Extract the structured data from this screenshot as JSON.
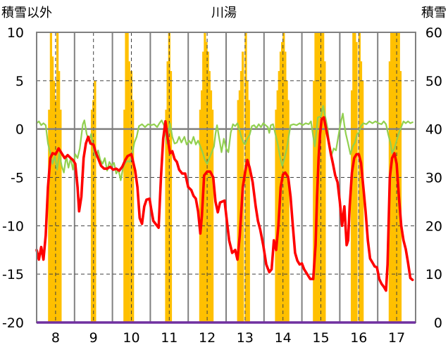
{
  "chart_data": {
    "type": "bar+line",
    "title": "川湯",
    "left_axis_label": "積雪以外",
    "right_axis_label": "積雪",
    "x_ticks": [
      "8",
      "9",
      "10",
      "11",
      "12",
      "13",
      "14",
      "15",
      "16",
      "17"
    ],
    "x_range": [
      7.5,
      17.5
    ],
    "y_left": {
      "min": -20,
      "max": 10,
      "ticks": [
        "10",
        "5",
        "0",
        "-5",
        "-10",
        "-15",
        "-20"
      ]
    },
    "y_right": {
      "min": 0,
      "max": 60,
      "ticks": [
        "60",
        "50",
        "40",
        "30",
        "20",
        "10",
        "0"
      ]
    },
    "colors": {
      "bars": "#FFC000",
      "red_line": "#FF0000",
      "green_line": "#92D050",
      "baseline": "#7030A0",
      "frame": "#808080"
    },
    "bars": [
      [
        7.83,
        44
      ],
      [
        7.88,
        60
      ],
      [
        7.92,
        55
      ],
      [
        7.96,
        50
      ],
      [
        8.0,
        46
      ],
      [
        8.05,
        60
      ],
      [
        8.09,
        52
      ],
      [
        8.13,
        44
      ],
      [
        8.96,
        44
      ],
      [
        9.0,
        46
      ],
      [
        9.04,
        50
      ],
      [
        9.82,
        44
      ],
      [
        9.86,
        60
      ],
      [
        9.9,
        60
      ],
      [
        9.94,
        54
      ],
      [
        10.0,
        52
      ],
      [
        10.04,
        46
      ],
      [
        10.92,
        44
      ],
      [
        10.96,
        54
      ],
      [
        11.0,
        60
      ],
      [
        11.04,
        52
      ],
      [
        11.82,
        44
      ],
      [
        11.86,
        48
      ],
      [
        11.9,
        56
      ],
      [
        11.94,
        60
      ],
      [
        11.98,
        58
      ],
      [
        12.02,
        56
      ],
      [
        12.06,
        52
      ],
      [
        12.1,
        48
      ],
      [
        12.14,
        44
      ],
      [
        12.82,
        46
      ],
      [
        12.86,
        48
      ],
      [
        12.9,
        52
      ],
      [
        12.94,
        56
      ],
      [
        13.02,
        60
      ],
      [
        13.06,
        50
      ],
      [
        13.1,
        46
      ],
      [
        13.82,
        44
      ],
      [
        13.86,
        48
      ],
      [
        13.9,
        52
      ],
      [
        13.94,
        56
      ],
      [
        13.98,
        58
      ],
      [
        14.02,
        60
      ],
      [
        14.06,
        56
      ],
      [
        14.1,
        50
      ],
      [
        14.14,
        46
      ],
      [
        14.82,
        50
      ],
      [
        14.86,
        60
      ],
      [
        14.9,
        60
      ],
      [
        14.94,
        60
      ],
      [
        14.98,
        60
      ],
      [
        15.02,
        60
      ],
      [
        15.06,
        60
      ],
      [
        15.1,
        54
      ],
      [
        15.82,
        48
      ],
      [
        15.86,
        60
      ],
      [
        15.9,
        60
      ],
      [
        15.94,
        58
      ],
      [
        16.02,
        60
      ],
      [
        16.06,
        54
      ],
      [
        16.1,
        50
      ],
      [
        16.82,
        54
      ],
      [
        16.86,
        60
      ],
      [
        16.9,
        60
      ],
      [
        16.94,
        60
      ],
      [
        16.98,
        60
      ],
      [
        17.02,
        60
      ],
      [
        17.06,
        60
      ],
      [
        17.1,
        52
      ]
    ],
    "red_series": [
      [
        7.5,
        -12.5
      ],
      [
        7.56,
        -13.5
      ],
      [
        7.62,
        -12.2
      ],
      [
        7.68,
        -13.5
      ],
      [
        7.74,
        -11
      ],
      [
        7.8,
        -6
      ],
      [
        7.86,
        -3
      ],
      [
        7.92,
        -2.5
      ],
      [
        8.0,
        -2.6
      ],
      [
        8.08,
        -2.0
      ],
      [
        8.16,
        -2.5
      ],
      [
        8.24,
        -3
      ],
      [
        8.32,
        -2.7
      ],
      [
        8.4,
        -3
      ],
      [
        8.46,
        -3.2
      ],
      [
        8.52,
        -3.6
      ],
      [
        8.58,
        -6
      ],
      [
        8.62,
        -8.5
      ],
      [
        8.68,
        -7
      ],
      [
        8.74,
        -3
      ],
      [
        8.8,
        -1.5
      ],
      [
        8.86,
        -0.8
      ],
      [
        8.92,
        -1.5
      ],
      [
        9.0,
        -1.6
      ],
      [
        9.06,
        -2.4
      ],
      [
        9.14,
        -3.2
      ],
      [
        9.2,
        -3.8
      ],
      [
        9.28,
        -4.1
      ],
      [
        9.36,
        -4.1
      ],
      [
        9.44,
        -3.9
      ],
      [
        9.52,
        -4.2
      ],
      [
        9.6,
        -4.1
      ],
      [
        9.68,
        -4.3
      ],
      [
        9.76,
        -3.9
      ],
      [
        9.84,
        -3.2
      ],
      [
        9.9,
        -2.8
      ],
      [
        10.0,
        -2.6
      ],
      [
        10.1,
        -4.3
      ],
      [
        10.16,
        -6
      ],
      [
        10.22,
        -9.2
      ],
      [
        10.28,
        -9.8
      ],
      [
        10.34,
        -8
      ],
      [
        10.4,
        -7.3
      ],
      [
        10.48,
        -7.2
      ],
      [
        10.52,
        -8.2
      ],
      [
        10.58,
        -9.5
      ],
      [
        10.64,
        -9.8
      ],
      [
        10.72,
        -10.2
      ],
      [
        10.78,
        -5
      ],
      [
        10.84,
        -1
      ],
      [
        10.9,
        0.8
      ],
      [
        10.96,
        -1
      ],
      [
        11.02,
        -2.5
      ],
      [
        11.08,
        -2.3
      ],
      [
        11.14,
        -3.1
      ],
      [
        11.2,
        -3.4
      ],
      [
        11.26,
        -4.2
      ],
      [
        11.34,
        -4.6
      ],
      [
        11.42,
        -4.6
      ],
      [
        11.5,
        -6
      ],
      [
        11.58,
        -6.3
      ],
      [
        11.64,
        -6.9
      ],
      [
        11.7,
        -7.2
      ],
      [
        11.76,
        -8.5
      ],
      [
        11.82,
        -10.8
      ],
      [
        11.86,
        -9
      ],
      [
        11.92,
        -4.8
      ],
      [
        12.0,
        -4.4
      ],
      [
        12.08,
        -4.4
      ],
      [
        12.16,
        -5
      ],
      [
        12.22,
        -7.5
      ],
      [
        12.28,
        -8.6
      ],
      [
        12.34,
        -7.6
      ],
      [
        12.4,
        -7.5
      ],
      [
        12.46,
        -7.4
      ],
      [
        12.52,
        -9.5
      ],
      [
        12.58,
        -11.5
      ],
      [
        12.66,
        -12.8
      ],
      [
        12.74,
        -12.5
      ],
      [
        12.8,
        -13.5
      ],
      [
        12.86,
        -11
      ],
      [
        12.94,
        -6
      ],
      [
        13.0,
        -4.5
      ],
      [
        13.06,
        -3.2
      ],
      [
        13.12,
        -4
      ],
      [
        13.2,
        -5.5
      ],
      [
        13.28,
        -8
      ],
      [
        13.34,
        -9.5
      ],
      [
        13.4,
        -10.4
      ],
      [
        13.48,
        -12
      ],
      [
        13.56,
        -14
      ],
      [
        13.64,
        -14.8
      ],
      [
        13.7,
        -14.5
      ],
      [
        13.76,
        -11.5
      ],
      [
        13.82,
        -12.5
      ],
      [
        13.88,
        -10
      ],
      [
        13.94,
        -6
      ],
      [
        14.0,
        -4.7
      ],
      [
        14.06,
        -4.5
      ],
      [
        14.14,
        -5
      ],
      [
        14.2,
        -7
      ],
      [
        14.26,
        -10
      ],
      [
        14.32,
        -12.8
      ],
      [
        14.38,
        -13.6
      ],
      [
        14.44,
        -14
      ],
      [
        14.5,
        -13.9
      ],
      [
        14.56,
        -14.5
      ],
      [
        14.64,
        -15
      ],
      [
        14.72,
        -15.5
      ],
      [
        14.8,
        -15.5
      ],
      [
        14.86,
        -12
      ],
      [
        14.9,
        -7
      ],
      [
        14.94,
        -3
      ],
      [
        14.98,
        -0.5
      ],
      [
        15.02,
        1
      ],
      [
        15.08,
        1.2
      ],
      [
        15.14,
        0
      ],
      [
        15.2,
        -1.2
      ],
      [
        15.26,
        -2.5
      ],
      [
        15.32,
        -3.6
      ],
      [
        15.38,
        -4.8
      ],
      [
        15.44,
        -5.5
      ],
      [
        15.5,
        -7.5
      ],
      [
        15.56,
        -10
      ],
      [
        15.62,
        -8
      ],
      [
        15.68,
        -12
      ],
      [
        15.72,
        -11.5
      ],
      [
        15.76,
        -8
      ],
      [
        15.82,
        -4.5
      ],
      [
        15.88,
        -3
      ],
      [
        15.94,
        -2.6
      ],
      [
        16.0,
        -2.6
      ],
      [
        16.06,
        -3.5
      ],
      [
        16.12,
        -6
      ],
      [
        16.18,
        -8.5
      ],
      [
        16.24,
        -11.5
      ],
      [
        16.3,
        -13.4
      ],
      [
        16.36,
        -13.8
      ],
      [
        16.42,
        -14.2
      ],
      [
        16.48,
        -14.3
      ],
      [
        16.54,
        -15.5
      ],
      [
        16.6,
        -16
      ],
      [
        16.66,
        -16.3
      ],
      [
        16.72,
        -16.7
      ],
      [
        16.76,
        -14
      ],
      [
        16.82,
        -5
      ],
      [
        16.88,
        -3
      ],
      [
        16.94,
        -2.5
      ],
      [
        17.0,
        -3.6
      ],
      [
        17.06,
        -7
      ],
      [
        17.12,
        -10
      ],
      [
        17.18,
        -11.5
      ],
      [
        17.24,
        -12.4
      ],
      [
        17.3,
        -13.8
      ],
      [
        17.36,
        -15.4
      ],
      [
        17.42,
        -15.6
      ]
    ],
    "green_series": [
      [
        7.5,
        0.6
      ],
      [
        7.56,
        0.8
      ],
      [
        7.62,
        0.4
      ],
      [
        7.68,
        0.6
      ],
      [
        7.74,
        0.4
      ],
      [
        7.8,
        -1.5
      ],
      [
        7.86,
        -2.5
      ],
      [
        7.92,
        -3.6
      ],
      [
        7.98,
        -2.8
      ],
      [
        8.04,
        -4.2
      ],
      [
        8.1,
        -2.5
      ],
      [
        8.16,
        -3.8
      ],
      [
        8.22,
        -4.5
      ],
      [
        8.28,
        -2.8
      ],
      [
        8.34,
        -4
      ],
      [
        8.4,
        -3
      ],
      [
        8.46,
        -4.2
      ],
      [
        8.52,
        -2.6
      ],
      [
        8.58,
        -3
      ],
      [
        8.64,
        -2
      ],
      [
        8.72,
        0.5
      ],
      [
        8.76,
        0.9
      ],
      [
        8.82,
        -0.5
      ],
      [
        8.88,
        -1.2
      ],
      [
        8.94,
        -0.5
      ],
      [
        9.0,
        -2.1
      ],
      [
        9.06,
        -2.9
      ],
      [
        9.12,
        -2.2
      ],
      [
        9.18,
        -3.2
      ],
      [
        9.24,
        -3.6
      ],
      [
        9.3,
        -3
      ],
      [
        9.36,
        -4.3
      ],
      [
        9.42,
        -3.4
      ],
      [
        9.48,
        -3.8
      ],
      [
        9.54,
        -3.5
      ],
      [
        9.6,
        -4.6
      ],
      [
        9.66,
        -4.2
      ],
      [
        9.72,
        -5.3
      ],
      [
        9.78,
        -4
      ],
      [
        9.84,
        -3.5
      ],
      [
        9.9,
        -3.3
      ],
      [
        9.96,
        -3.4
      ],
      [
        10.02,
        -2.6
      ],
      [
        10.08,
        -1.4
      ],
      [
        10.14,
        -0.8
      ],
      [
        10.2,
        0.3
      ],
      [
        10.28,
        0.5
      ],
      [
        10.36,
        0.2
      ],
      [
        10.44,
        0.5
      ],
      [
        10.52,
        0.4
      ],
      [
        10.6,
        0.5
      ],
      [
        10.68,
        0.2
      ],
      [
        10.74,
        0.6
      ],
      [
        10.8,
        0.9
      ],
      [
        10.86,
        0.4
      ],
      [
        10.9,
        -0.5
      ],
      [
        10.94,
        -1.5
      ],
      [
        10.98,
        -0.3
      ],
      [
        11.02,
        0.6
      ],
      [
        11.08,
        -0.8
      ],
      [
        11.14,
        -1.5
      ],
      [
        11.2,
        -1.4
      ],
      [
        11.26,
        -0.8
      ],
      [
        11.32,
        -1.4
      ],
      [
        11.4,
        -0.8
      ],
      [
        11.46,
        -1.6
      ],
      [
        11.52,
        -1.2
      ],
      [
        11.58,
        -1.5
      ],
      [
        11.64,
        -0.8
      ],
      [
        11.7,
        -1.6
      ],
      [
        11.76,
        -1.2
      ],
      [
        11.82,
        -1.8
      ],
      [
        11.88,
        -2.4
      ],
      [
        11.94,
        -3.2
      ],
      [
        12.0,
        -3.6
      ],
      [
        12.06,
        -3.0
      ],
      [
        12.12,
        -2.4
      ],
      [
        12.18,
        -1.8
      ],
      [
        12.22,
        -0.5
      ],
      [
        12.26,
        0.4
      ],
      [
        12.32,
        -1
      ],
      [
        12.38,
        -2.4
      ],
      [
        12.44,
        -1
      ],
      [
        12.5,
        -2
      ],
      [
        12.56,
        -2.4
      ],
      [
        12.62,
        -0.4
      ],
      [
        12.68,
        0.5
      ],
      [
        12.74,
        0.3
      ],
      [
        12.8,
        0.6
      ],
      [
        12.86,
        -0.2
      ],
      [
        12.9,
        -0.8
      ],
      [
        12.96,
        -1.4
      ],
      [
        13.0,
        -1.6
      ],
      [
        13.06,
        -1.0
      ],
      [
        13.12,
        -0.6
      ],
      [
        13.18,
        0.3
      ],
      [
        13.24,
        0.4
      ],
      [
        13.3,
        0.1
      ],
      [
        13.36,
        0.5
      ],
      [
        13.42,
        0.2
      ],
      [
        13.48,
        0.6
      ],
      [
        13.54,
        0.4
      ],
      [
        13.6,
        0.2
      ],
      [
        13.64,
        -0.4
      ],
      [
        13.68,
        0.4
      ],
      [
        13.74,
        0.5
      ],
      [
        13.8,
        -0.5
      ],
      [
        13.86,
        -1.5
      ],
      [
        13.92,
        -2.8
      ],
      [
        13.98,
        -3.8
      ],
      [
        14.04,
        -3
      ],
      [
        14.1,
        -2
      ],
      [
        14.16,
        -0.6
      ],
      [
        14.2,
        0.4
      ],
      [
        14.28,
        0.5
      ],
      [
        14.36,
        0.4
      ],
      [
        14.44,
        0.6
      ],
      [
        14.52,
        0.4
      ],
      [
        14.6,
        0.6
      ],
      [
        14.68,
        0.5
      ],
      [
        14.74,
        0.8
      ],
      [
        14.8,
        -0.8
      ],
      [
        14.84,
        -1.8
      ],
      [
        14.88,
        -0.4
      ],
      [
        14.92,
        1.2
      ],
      [
        15.0,
        1.3
      ],
      [
        15.06,
        2.4
      ],
      [
        15.12,
        1.2
      ],
      [
        15.18,
        0
      ],
      [
        15.22,
        -1.5
      ],
      [
        15.28,
        -2.7
      ],
      [
        15.34,
        -2
      ],
      [
        15.4,
        -2.2
      ],
      [
        15.46,
        -0.8
      ],
      [
        15.52,
        0.6
      ],
      [
        15.58,
        1.6
      ],
      [
        15.62,
        0.4
      ],
      [
        15.66,
        -0.5
      ],
      [
        15.72,
        -1.5
      ],
      [
        15.78,
        -2.6
      ],
      [
        15.84,
        -1.8
      ],
      [
        15.9,
        -1.4
      ],
      [
        15.96,
        -0.5
      ],
      [
        16.0,
        -0.4
      ],
      [
        16.06,
        0.3
      ],
      [
        16.12,
        0.6
      ],
      [
        16.2,
        0.5
      ],
      [
        16.28,
        0.8
      ],
      [
        16.36,
        0.6
      ],
      [
        16.44,
        0.8
      ],
      [
        16.52,
        0.6
      ],
      [
        16.6,
        0.5
      ],
      [
        16.66,
        0.8
      ],
      [
        16.72,
        0.5
      ],
      [
        16.78,
        -0.6
      ],
      [
        16.84,
        -1.5
      ],
      [
        16.88,
        -2.5
      ],
      [
        16.94,
        -2.0
      ],
      [
        17.0,
        -1.2
      ],
      [
        17.06,
        -0.4
      ],
      [
        17.12,
        0.2
      ],
      [
        17.18,
        0.8
      ],
      [
        17.24,
        0.6
      ],
      [
        17.3,
        0.8
      ],
      [
        17.36,
        0.6
      ],
      [
        17.42,
        0.7
      ]
    ]
  }
}
